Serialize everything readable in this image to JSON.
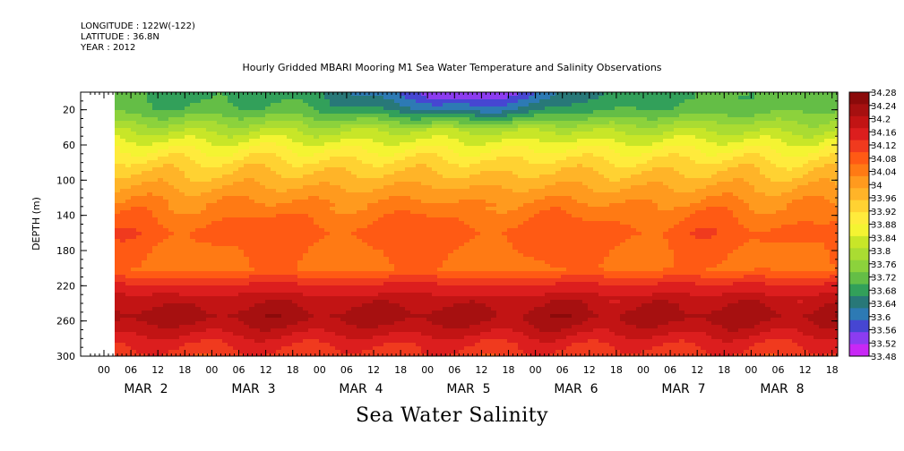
{
  "header": {
    "longitude": "LONGITUDE : 122W(-122)",
    "latitude": "LATITUDE : 36.8N",
    "year": "YEAR : 2012"
  },
  "title": "Hourly Gridded MBARI Mooring M1 Sea Water Temperature and Salinity Observations",
  "footer_label": "Sea Water Salinity",
  "chart_data": {
    "type": "heatmap",
    "title": "Hourly Gridded MBARI Mooring M1 Sea Water Temperature and Salinity Observations",
    "ylabel": "DEPTH (m)",
    "xlabel": "",
    "y_axis_inverted": true,
    "ylim": [
      0,
      300
    ],
    "y_ticks": [
      "20",
      "60",
      "100",
      "140",
      "180",
      "220",
      "260",
      "300"
    ],
    "x_hour_ticks": [
      "00",
      "06",
      "12",
      "18",
      "00",
      "06",
      "12",
      "18",
      "00",
      "06",
      "12",
      "18",
      "00",
      "06",
      "12",
      "18",
      "00",
      "06",
      "12",
      "18",
      "00",
      "06",
      "12",
      "18",
      "00",
      "06",
      "12",
      "18"
    ],
    "x_day_labels": [
      "MAR  2",
      "MAR  3",
      "MAR  4",
      "MAR  5",
      "MAR  6",
      "MAR  7",
      "MAR  8"
    ],
    "colorbar": {
      "levels": [
        "34.28",
        "34.24",
        "34.2",
        "34.16",
        "34.12",
        "34.08",
        "34.04",
        "34",
        "33.96",
        "33.92",
        "33.88",
        "33.84",
        "33.8",
        "33.76",
        "33.72",
        "33.68",
        "33.64",
        "33.6",
        "33.56",
        "33.52",
        "33.48"
      ],
      "colors": [
        "#8b0a0a",
        "#a61010",
        "#c21414",
        "#dc1e1e",
        "#f03a1e",
        "#ff5a14",
        "#ff7a14",
        "#ff9a1e",
        "#ffb428",
        "#ffd232",
        "#ffeb3c",
        "#f4f432",
        "#c8e628",
        "#aadc32",
        "#8cd23c",
        "#64be46",
        "#32a05a",
        "#287878",
        "#2d7ab4",
        "#4646d2",
        "#8c3cf0",
        "#c828f5"
      ]
    },
    "depth_profile": [
      {
        "depth": 5,
        "value": 33.67
      },
      {
        "depth": 20,
        "value": 33.69
      },
      {
        "depth": 40,
        "value": 33.78
      },
      {
        "depth": 60,
        "value": 33.86
      },
      {
        "depth": 80,
        "value": 33.93
      },
      {
        "depth": 100,
        "value": 33.98
      },
      {
        "depth": 120,
        "value": 34.03
      },
      {
        "depth": 140,
        "value": 34.07
      },
      {
        "depth": 160,
        "value": 34.1
      },
      {
        "depth": 180,
        "value": 34.08
      },
      {
        "depth": 200,
        "value": 34.07
      },
      {
        "depth": 220,
        "value": 34.17
      },
      {
        "depth": 240,
        "value": 34.23
      },
      {
        "depth": 255,
        "value": 34.26
      },
      {
        "depth": 270,
        "value": 34.22
      },
      {
        "depth": 285,
        "value": 34.17
      },
      {
        "depth": 300,
        "value": 34.14
      }
    ],
    "fresh_surface_event": {
      "date": "MAR 5",
      "depth_range": [
        5,
        30
      ],
      "min_value": 33.49
    }
  }
}
